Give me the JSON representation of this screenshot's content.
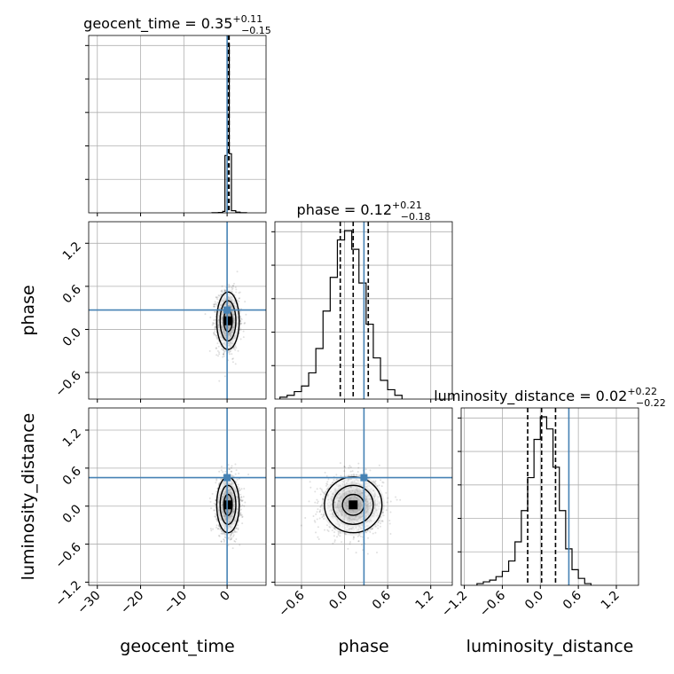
{
  "chart_data": {
    "type": "corner",
    "parameters": [
      "geocent_time",
      "phase",
      "luminosity_distance"
    ],
    "titles": [
      {
        "param": "geocent_time",
        "text": "geocent_time = 0.35",
        "sup": "+0.11",
        "sub": "−0.15"
      },
      {
        "param": "phase",
        "text": "phase = 0.12",
        "sup": "+0.21",
        "sub": "−0.18"
      },
      {
        "param": "luminosity_distance",
        "text": "luminosity_distance = 0.02",
        "sup": "+0.22",
        "sub": "−0.22"
      }
    ],
    "truths": {
      "geocent_time": 0.0,
      "phase": 0.27,
      "luminosity_distance": 0.45
    },
    "truth_color": "#4682b4",
    "axes": {
      "geocent_time": {
        "range": [
          -32,
          9
        ],
        "ticks": [
          -30,
          -20,
          -10,
          0
        ],
        "tick_labels": [
          "−30",
          "−20",
          "−10",
          "0"
        ]
      },
      "phase": {
        "range": [
          -0.97,
          1.5
        ],
        "ticks": [
          -0.6,
          0.0,
          0.6,
          1.2
        ],
        "tick_labels": [
          "−0.6",
          "0.0",
          "0.6",
          "1.2"
        ]
      },
      "luminosity_distance": {
        "range": [
          -1.25,
          1.55
        ],
        "ticks": [
          -1.2,
          -0.6,
          0.0,
          0.6,
          1.2
        ],
        "tick_labels": [
          "−1.2",
          "−0.6",
          "0.0",
          "0.6",
          "1.2"
        ]
      }
    },
    "hist_quantiles": {
      "geocent_time": [
        0.2,
        0.35,
        0.46
      ],
      "phase": [
        -0.06,
        0.12,
        0.33
      ],
      "luminosity_distance": [
        -0.2,
        0.02,
        0.24
      ]
    },
    "histograms": {
      "geocent_time": {
        "edges": [
          -3.5,
          -2,
          -1,
          -0.5,
          0,
          0.5,
          1,
          2,
          3,
          4.5
        ],
        "counts": [
          1,
          2,
          8,
          320,
          940,
          330,
          12,
          4,
          1
        ]
      },
      "phase": {
        "edges": [
          -0.9,
          -0.8,
          -0.7,
          -0.6,
          -0.5,
          -0.4,
          -0.3,
          -0.2,
          -0.1,
          0,
          0.1,
          0.2,
          0.3,
          0.4,
          0.5,
          0.6,
          0.7,
          0.8
        ],
        "counts": [
          1,
          2,
          4,
          7,
          14,
          27,
          47,
          65,
          85,
          90,
          80,
          62,
          40,
          22,
          10,
          5,
          2
        ]
      },
      "luminosity_distance": {
        "edges": [
          -1.0,
          -0.9,
          -0.8,
          -0.7,
          -0.6,
          -0.5,
          -0.4,
          -0.3,
          -0.2,
          -0.1,
          0,
          0.1,
          0.2,
          0.3,
          0.4,
          0.5,
          0.6,
          0.7,
          0.8
        ],
        "counts": [
          1,
          2,
          3,
          5,
          8,
          14,
          25,
          43,
          62,
          84,
          97,
          90,
          68,
          43,
          21,
          9,
          4,
          1
        ]
      }
    },
    "scatter_spread": {
      "geocent_time": {
        "center": 0.2,
        "sd": 1.3
      },
      "phase": {
        "center": 0.12,
        "sd": 0.2
      },
      "luminosity_distance": {
        "center": 0.02,
        "sd": 0.22
      }
    },
    "grid": true
  }
}
